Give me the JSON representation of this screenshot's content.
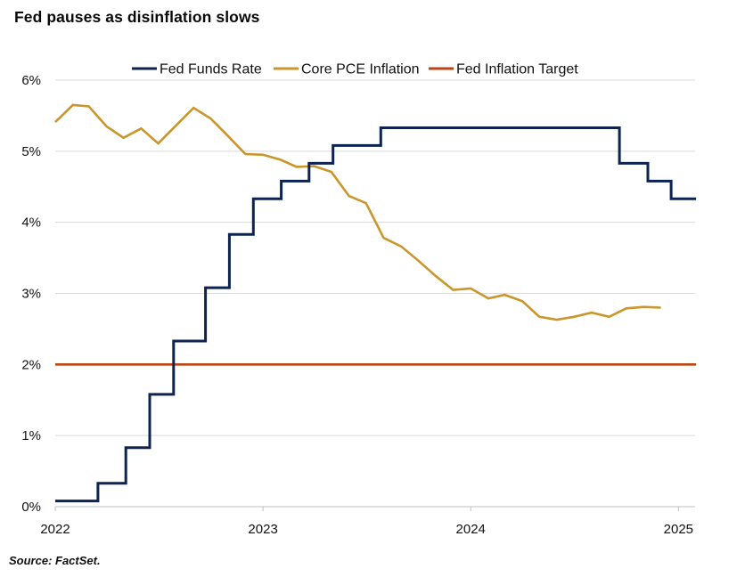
{
  "title": "Fed pauses as disinflation slows",
  "source": "Source: FactSet.",
  "colors": {
    "fed_funds": "#0d2350",
    "core_pce": "#c9962b",
    "target": "#b84515",
    "grid": "#d9d9d9",
    "axis": "#bfbfbf"
  },
  "chart_data": {
    "type": "line",
    "title": "Fed pauses as disinflation slows",
    "xlabel": "",
    "ylabel": "",
    "xlim": [
      2022.0,
      2025.08
    ],
    "ylim": [
      0,
      6
    ],
    "y_ticks": [
      0,
      1,
      2,
      3,
      4,
      5,
      6
    ],
    "y_tick_labels": [
      "0%",
      "1%",
      "2%",
      "3%",
      "4%",
      "5%",
      "6%"
    ],
    "x_ticks": [
      2022,
      2023,
      2024,
      2025
    ],
    "x_tick_labels": [
      "2022",
      "2023",
      "2024",
      "2025"
    ],
    "grid": "horizontal",
    "legend_position": "top",
    "series": [
      {
        "name": "Fed Funds Rate",
        "style": "step",
        "color": "#0d2350",
        "points": [
          [
            "2022-01-01",
            0.08
          ],
          [
            "2022-03-17",
            0.33
          ],
          [
            "2022-05-05",
            0.83
          ],
          [
            "2022-06-16",
            1.58
          ],
          [
            "2022-07-28",
            2.33
          ],
          [
            "2022-09-22",
            3.08
          ],
          [
            "2022-11-03",
            3.83
          ],
          [
            "2022-12-15",
            4.33
          ],
          [
            "2023-02-02",
            4.58
          ],
          [
            "2023-03-23",
            4.83
          ],
          [
            "2023-05-04",
            5.08
          ],
          [
            "2023-07-27",
            5.33
          ],
          [
            "2024-09-19",
            4.83
          ],
          [
            "2024-11-08",
            4.58
          ],
          [
            "2024-12-19",
            4.33
          ],
          [
            "2025-02-01",
            4.33
          ]
        ]
      },
      {
        "name": "Core PCE Inflation",
        "style": "line",
        "color": "#c9962b",
        "points": [
          [
            "2022-01",
            5.41
          ],
          [
            "2022-02",
            5.65
          ],
          [
            "2022-03",
            5.63
          ],
          [
            "2022-04",
            5.35
          ],
          [
            "2022-05",
            5.19
          ],
          [
            "2022-06",
            5.32
          ],
          [
            "2022-07",
            5.11
          ],
          [
            "2022-08",
            5.36
          ],
          [
            "2022-09",
            5.61
          ],
          [
            "2022-10",
            5.46
          ],
          [
            "2022-11",
            5.21
          ],
          [
            "2022-12",
            4.96
          ],
          [
            "2023-01",
            4.95
          ],
          [
            "2023-02",
            4.88
          ],
          [
            "2023-03",
            4.78
          ],
          [
            "2023-04",
            4.79
          ],
          [
            "2023-05",
            4.71
          ],
          [
            "2023-06",
            4.37
          ],
          [
            "2023-07",
            4.27
          ],
          [
            "2023-08",
            3.78
          ],
          [
            "2023-09",
            3.66
          ],
          [
            "2023-10",
            3.46
          ],
          [
            "2023-11",
            3.24
          ],
          [
            "2023-12",
            3.05
          ],
          [
            "2024-01",
            3.07
          ],
          [
            "2024-02",
            2.93
          ],
          [
            "2024-03",
            2.98
          ],
          [
            "2024-04",
            2.89
          ],
          [
            "2024-05",
            2.67
          ],
          [
            "2024-06",
            2.63
          ],
          [
            "2024-07",
            2.67
          ],
          [
            "2024-08",
            2.73
          ],
          [
            "2024-09",
            2.67
          ],
          [
            "2024-10",
            2.79
          ],
          [
            "2024-11",
            2.81
          ],
          [
            "2024-12",
            2.8
          ]
        ]
      },
      {
        "name": "Fed Inflation Target",
        "style": "line",
        "color": "#b84515",
        "points": [
          [
            "2022-01-01",
            2.0
          ],
          [
            "2025-02-01",
            2.0
          ]
        ]
      }
    ]
  }
}
